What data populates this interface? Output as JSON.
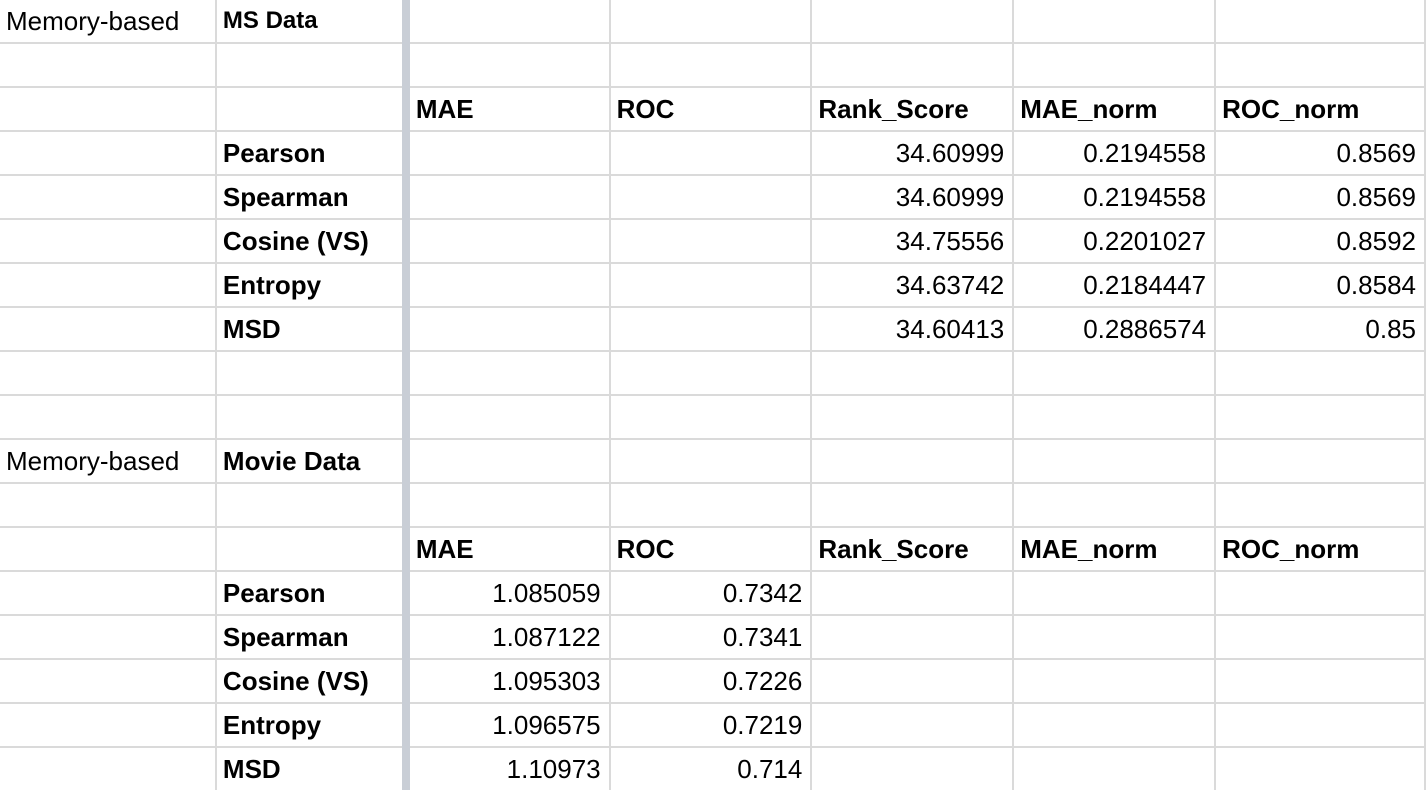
{
  "blocks": [
    {
      "label": "Memory-based",
      "dataset": "MS Data",
      "headers": [
        "MAE",
        "ROC",
        "Rank_Score",
        "MAE_norm",
        "ROC_norm"
      ],
      "rows": [
        {
          "name": "Pearson",
          "values": [
            "",
            "",
            "34.60999",
            "0.2194558",
            "0.8569"
          ]
        },
        {
          "name": "Spearman",
          "values": [
            "",
            "",
            "34.60999",
            "0.2194558",
            "0.8569"
          ]
        },
        {
          "name": "Cosine (VS)",
          "values": [
            "",
            "",
            "34.75556",
            "0.2201027",
            "0.8592"
          ]
        },
        {
          "name": "Entropy",
          "values": [
            "",
            "",
            "34.63742",
            "0.2184447",
            "0.8584"
          ]
        },
        {
          "name": "MSD",
          "values": [
            "",
            "",
            "34.60413",
            "0.2886574",
            "0.85"
          ]
        }
      ]
    },
    {
      "label": "Memory-based",
      "dataset": "Movie Data",
      "headers": [
        "MAE",
        "ROC",
        "Rank_Score",
        "MAE_norm",
        "ROC_norm"
      ],
      "rows": [
        {
          "name": "Pearson",
          "values": [
            "1.085059",
            "0.7342",
            "",
            "",
            ""
          ]
        },
        {
          "name": "Spearman",
          "values": [
            "1.087122",
            "0.7341",
            "",
            "",
            ""
          ]
        },
        {
          "name": "Cosine (VS)",
          "values": [
            "1.095303",
            "0.7226",
            "",
            "",
            ""
          ]
        },
        {
          "name": "Entropy",
          "values": [
            "1.096575",
            "0.7219",
            "",
            "",
            ""
          ]
        },
        {
          "name": "MSD",
          "values": [
            "1.10973",
            "0.714",
            "",
            "",
            ""
          ]
        }
      ]
    }
  ]
}
